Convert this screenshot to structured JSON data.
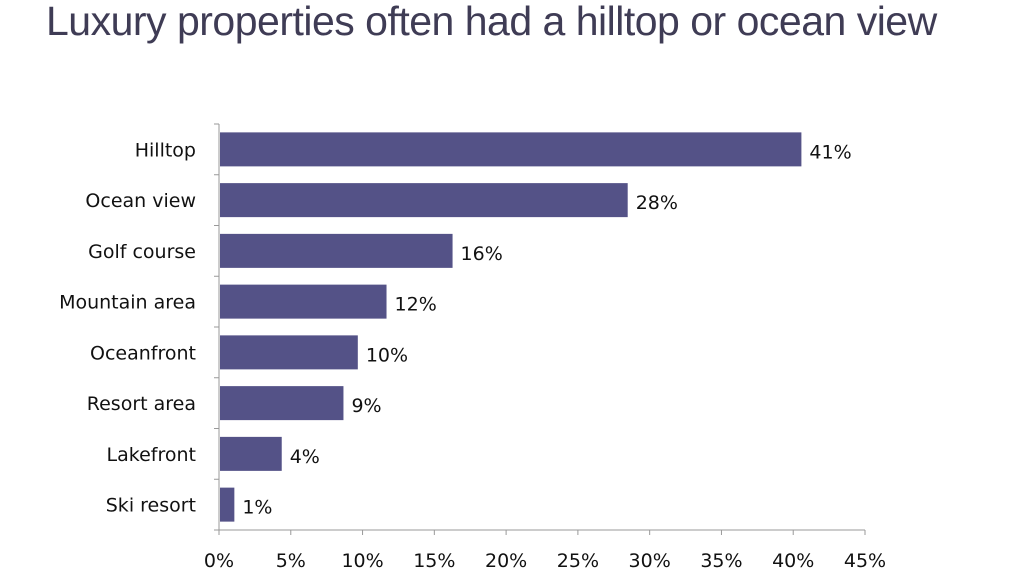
{
  "chart_data": {
    "type": "bar",
    "orientation": "horizontal",
    "title": "Luxury properties often had a hilltop or ocean view",
    "categories": [
      "Hilltop",
      "Ocean view",
      "Golf course",
      "Mountain area",
      "Oceanfront",
      "Resort area",
      "Lakefront",
      "Ski resort"
    ],
    "values": [
      40.5,
      28.4,
      16.2,
      11.6,
      9.6,
      8.6,
      4.3,
      1.0
    ],
    "data_labels": [
      "41%",
      "28%",
      "16%",
      "12%",
      "10%",
      "9%",
      "4%",
      "1%"
    ],
    "xlim": [
      0,
      45
    ],
    "xticks": [
      "0%",
      "5%",
      "10%",
      "15%",
      "20%",
      "25%",
      "30%",
      "35%",
      "40%",
      "45%"
    ],
    "xlabel": "",
    "ylabel": "",
    "grid": false,
    "legend": "none",
    "bar_color": "#545287"
  }
}
